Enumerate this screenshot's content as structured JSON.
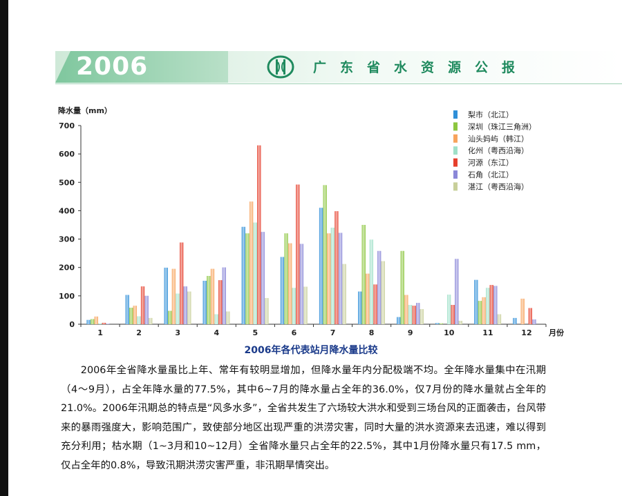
{
  "header": {
    "year": "2006",
    "title": "广东省水资源公报"
  },
  "chart_data": {
    "type": "bar",
    "title": "2006年各代表站月降水量比较",
    "ylabel": "降水量（mm）",
    "xlabel": "月份",
    "ylim": [
      0,
      700
    ],
    "yticks": [
      0,
      100,
      200,
      300,
      400,
      500,
      600,
      700
    ],
    "categories": [
      "1",
      "2",
      "3",
      "4",
      "5",
      "6",
      "7",
      "8",
      "9",
      "10",
      "11",
      "12"
    ],
    "legend_position": "top-right",
    "series": [
      {
        "name": "梨市（北江）",
        "color": "#2f8fd8",
        "values": [
          15,
          103,
          199,
          153,
          343,
          237,
          410,
          115,
          25,
          4,
          156,
          22
        ]
      },
      {
        "name": "深圳（珠江三角洲）",
        "color": "#8cc63f",
        "values": [
          18,
          58,
          47,
          170,
          320,
          320,
          490,
          350,
          258,
          3,
          82,
          0
        ]
      },
      {
        "name": "汕头妈屿（韩江）",
        "color": "#f7a35c",
        "values": [
          27,
          65,
          195,
          195,
          432,
          285,
          320,
          178,
          103,
          0,
          95,
          90
        ]
      },
      {
        "name": "化州（粤西沿海）",
        "color": "#9fe0c8",
        "values": [
          3,
          28,
          108,
          35,
          358,
          128,
          340,
          298,
          68,
          104,
          128,
          0
        ]
      },
      {
        "name": "河源（东江）",
        "color": "#e63f2c",
        "values": [
          5,
          133,
          288,
          155,
          630,
          492,
          398,
          140,
          65,
          68,
          138,
          57
        ]
      },
      {
        "name": "石角（北江）",
        "color": "#8a87d8",
        "values": [
          2,
          100,
          133,
          200,
          325,
          283,
          322,
          258,
          75,
          230,
          135,
          17
        ]
      },
      {
        "name": "湛江（粤西沿海）",
        "color": "#c8cf9a",
        "values": [
          0,
          22,
          115,
          45,
          92,
          132,
          212,
          222,
          53,
          12,
          35,
          0
        ]
      }
    ]
  },
  "body": {
    "paragraph": "2006年全省降水量虽比上年、常年有较明显增加，但降水量年内分配极端不均。全年降水量集中在汛期（4～9月），占全年降水量的77.5%，其中6~7月的降水量占全年的36.0%，仅7月份的降水量就占全年的21.0%。2006年汛期总的特点是“风多水多”，全省共发生了六场较大洪水和受到三场台风的正面袭击，台风带来的暴雨强度大，影响范围广，致使部分地区出现严重的洪涝灾害，同时大量的洪水资源来去迅速，难以得到充分利用；枯水期（1~3月和10~12月）全省降水量只占全年的22.5%，其中1月份降水量只有17.5 mm，仅占全年的0.8%，导致汛期洪涝灾害严重，非汛期旱情突出。"
  }
}
